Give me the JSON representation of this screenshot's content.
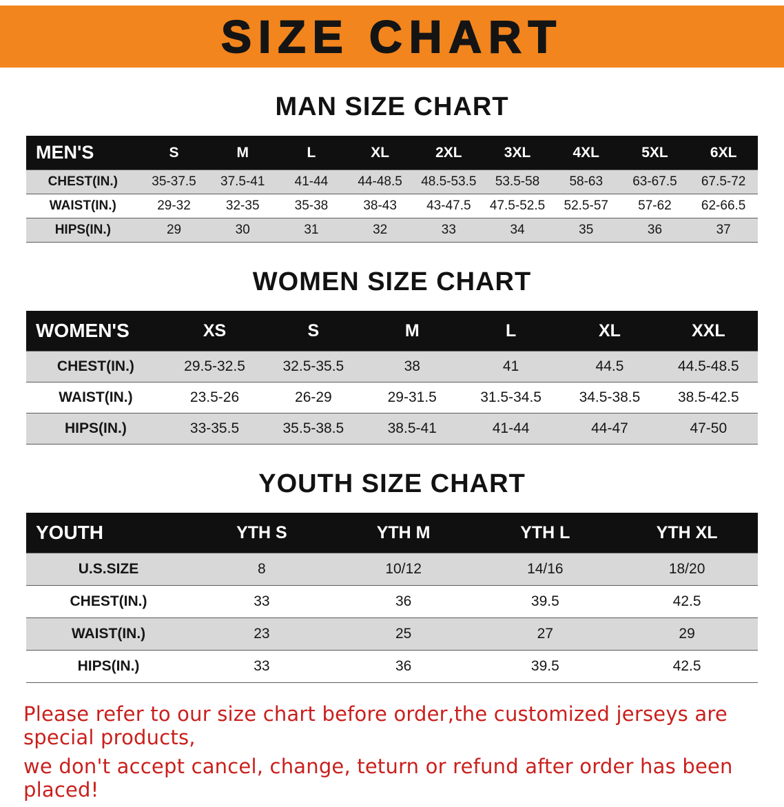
{
  "banner": {
    "title": "SIZE CHART"
  },
  "sections": [
    {
      "key": "men",
      "heading": "MAN SIZE CHART",
      "header": [
        "MEN'S",
        "S",
        "M",
        "L",
        "XL",
        "2XL",
        "3XL",
        "4XL",
        "5XL",
        "6XL"
      ],
      "rows": [
        [
          "CHEST(IN.)",
          "35-37.5",
          "37.5-41",
          "41-44",
          "44-48.5",
          "48.5-53.5",
          "53.5-58",
          "58-63",
          "63-67.5",
          "67.5-72"
        ],
        [
          "WAIST(IN.)",
          "29-32",
          "32-35",
          "35-38",
          "38-43",
          "43-47.5",
          "47.5-52.5",
          "52.5-57",
          "57-62",
          "62-66.5"
        ],
        [
          "HIPS(IN.)",
          "29",
          "30",
          "31",
          "32",
          "33",
          "34",
          "35",
          "36",
          "37"
        ]
      ]
    },
    {
      "key": "women",
      "heading": "WOMEN SIZE CHART",
      "header": [
        "WOMEN'S",
        "XS",
        "S",
        "M",
        "L",
        "XL",
        "XXL"
      ],
      "rows": [
        [
          "CHEST(IN.)",
          "29.5-32.5",
          "32.5-35.5",
          "38",
          "41",
          "44.5",
          "44.5-48.5"
        ],
        [
          "WAIST(IN.)",
          "23.5-26",
          "26-29",
          "29-31.5",
          "31.5-34.5",
          "34.5-38.5",
          "38.5-42.5"
        ],
        [
          "HIPS(IN.)",
          "33-35.5",
          "35.5-38.5",
          "38.5-41",
          "41-44",
          "44-47",
          "47-50"
        ]
      ]
    },
    {
      "key": "youth",
      "heading": "YOUTH SIZE CHART",
      "header": [
        "YOUTH",
        "YTH S",
        "YTH M",
        "YTH L",
        "YTH XL"
      ],
      "rows": [
        [
          "U.S.SIZE",
          "8",
          "10/12",
          "14/16",
          "18/20"
        ],
        [
          "CHEST(IN.)",
          "33",
          "36",
          "39.5",
          "42.5"
        ],
        [
          "WAIST(IN.)",
          "23",
          "25",
          "27",
          "29"
        ],
        [
          "HIPS(IN.)",
          "33",
          "36",
          "39.5",
          "42.5"
        ]
      ]
    }
  ],
  "footer": {
    "line1": "Please refer to our size chart before order,the customized jerseys are special products,",
    "line2": "we don't accept cancel, change, teturn or refund after order has been placed!"
  },
  "colors": {
    "banner_bg": "#f2851d",
    "banner_text": "#141414",
    "header_bg": "#101010",
    "header_text": "#ffffff",
    "row_alt_bg": "#d8d8d8",
    "row_bg": "#ffffff",
    "grid_line": "#5a5a5a",
    "footer_text": "#c9201d"
  }
}
